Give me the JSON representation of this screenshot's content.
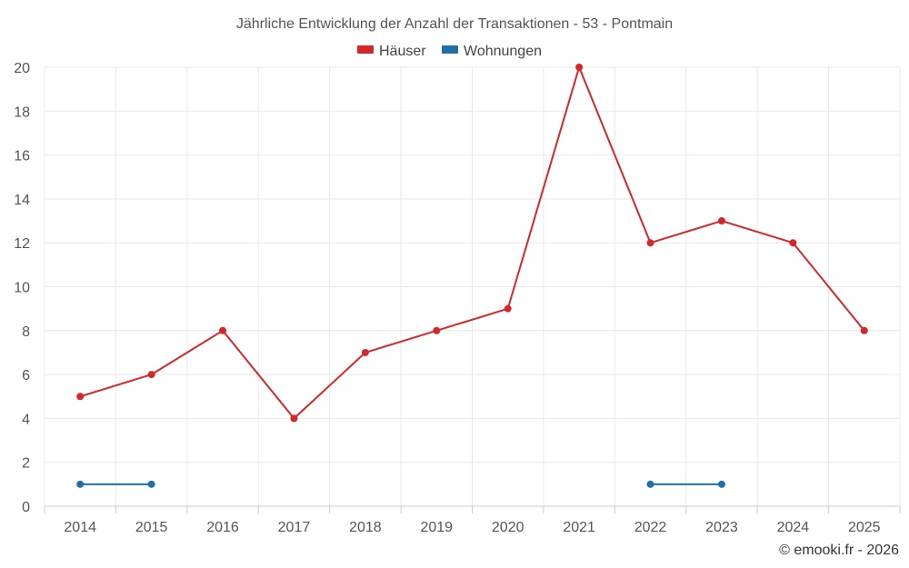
{
  "chart_data": {
    "type": "line",
    "title": "Jährliche Entwicklung der Anzahl der Transaktionen - 53 - Pontmain",
    "categories": [
      "2014",
      "2015",
      "2016",
      "2017",
      "2018",
      "2019",
      "2020",
      "2021",
      "2022",
      "2023",
      "2024",
      "2025"
    ],
    "series": [
      {
        "name": "Häuser",
        "color": "#d62728",
        "values": [
          5,
          6,
          8,
          4,
          7,
          8,
          9,
          20,
          12,
          13,
          12,
          8
        ]
      },
      {
        "name": "Wohnungen",
        "color": "#1f6fa8",
        "values": [
          1,
          1,
          null,
          null,
          null,
          null,
          null,
          null,
          1,
          1,
          null,
          null
        ]
      }
    ],
    "ylim": [
      0,
      20
    ],
    "yticks": [
      0,
      2,
      4,
      6,
      8,
      10,
      12,
      14,
      16,
      18,
      20
    ],
    "xlabel": "",
    "ylabel": "",
    "grid": true,
    "legend": "top-center"
  },
  "credit": "© emooki.fr - 2026"
}
